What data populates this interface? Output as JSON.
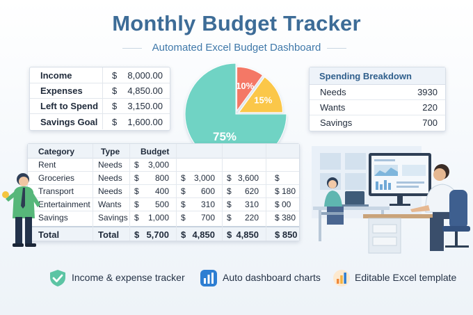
{
  "header": {
    "title": "Monthly Budget Tracker",
    "subtitle": "Automated Excel Budget Dashboard"
  },
  "summary": [
    {
      "label": "Income",
      "currency": "$",
      "value": "8,000.00"
    },
    {
      "label": "Expenses",
      "currency": "$",
      "value": "4,850.00"
    },
    {
      "label": "Left to Spend",
      "currency": "$",
      "value": "3,150.00"
    },
    {
      "label": "Savings Goal",
      "currency": "$",
      "value": "1,600.00"
    }
  ],
  "pie": {
    "slices": [
      {
        "label": "75%",
        "value": 75,
        "color": "#6fd3c4"
      },
      {
        "label": "10%",
        "value": 10,
        "color": "#f47866"
      },
      {
        "label": "15%",
        "value": 15,
        "color": "#fbc748"
      }
    ]
  },
  "breakdown": {
    "title": "Spending Breakdown",
    "rows": [
      {
        "label": "Needs",
        "value": "3930"
      },
      {
        "label": "Wants",
        "value": "220"
      },
      {
        "label": "Savings",
        "value": "700"
      }
    ]
  },
  "category_table": {
    "headers": [
      "Category",
      "Type",
      "Budget"
    ],
    "rows": [
      {
        "category": "Rent",
        "type": "Needs",
        "budget_cur": "$",
        "budget": "3,000",
        "c2_cur": "",
        "c2": "",
        "c3_cur": "",
        "c3": "",
        "c4": ""
      },
      {
        "category": "Groceries",
        "type": "Needs",
        "budget_cur": "$",
        "budget": "800",
        "c2_cur": "$",
        "c2": "3,000",
        "c3_cur": "$",
        "c3": "3,600",
        "c4": "$"
      },
      {
        "category": "Transport",
        "type": "Needs",
        "budget_cur": "$",
        "budget": "400",
        "c2_cur": "$",
        "c2": "600",
        "c3_cur": "$",
        "c3": "620",
        "c4": "$ 180"
      },
      {
        "category": "Entertainment",
        "type": "Wants",
        "budget_cur": "$",
        "budget": "500",
        "c2_cur": "$",
        "c2": "310",
        "c3_cur": "$",
        "c3": "310",
        "c4": "$ 00"
      },
      {
        "category": "Savings",
        "type": "Savings",
        "budget_cur": "$",
        "budget": "1,000",
        "c2_cur": "$",
        "c2": "700",
        "c3_cur": "$",
        "c3": "220",
        "c4": "$ 380"
      }
    ],
    "total": {
      "category": "Total",
      "type": "Total",
      "budget_cur": "$",
      "budget": "5,700",
      "c2_cur": "$",
      "c2": "4,850",
      "c3_cur": "$",
      "c3": "4,850",
      "c4": "$ 850"
    }
  },
  "features": [
    {
      "label": "Income & expense tracker",
      "icon": "shield-check-icon"
    },
    {
      "label": "Auto dashboard charts",
      "icon": "bar-chart-icon"
    },
    {
      "label": "Editable Excel template",
      "icon": "chart-badge-icon"
    }
  ]
}
